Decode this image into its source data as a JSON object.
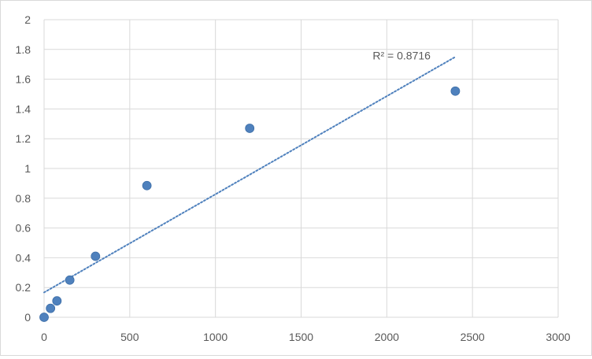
{
  "chart_data": {
    "type": "scatter",
    "title": "",
    "xlabel": "",
    "ylabel": "",
    "xlim": [
      0,
      3000
    ],
    "ylim": [
      0,
      2
    ],
    "x_ticks": [
      0,
      500,
      1000,
      1500,
      2000,
      2500,
      3000
    ],
    "y_ticks": [
      0,
      0.2,
      0.4,
      0.6,
      0.8,
      1,
      1.2,
      1.4,
      1.6,
      1.8,
      2
    ],
    "x_tick_labels": [
      "0",
      "500",
      "1000",
      "1500",
      "2000",
      "2500",
      "3000"
    ],
    "y_tick_labels": [
      "0",
      "0.2",
      "0.4",
      "0.6",
      "0.8",
      "1",
      "1.2",
      "1.4",
      "1.6",
      "1.8",
      "2"
    ],
    "grid": true,
    "series": [
      {
        "points": [
          {
            "x": 0,
            "y": 0.0
          },
          {
            "x": 37.5,
            "y": 0.06
          },
          {
            "x": 75,
            "y": 0.11
          },
          {
            "x": 150,
            "y": 0.25
          },
          {
            "x": 300,
            "y": 0.41
          },
          {
            "x": 600,
            "y": 0.885
          },
          {
            "x": 1200,
            "y": 1.27
          },
          {
            "x": 2400,
            "y": 1.52
          }
        ],
        "color": "#4f81bd"
      }
    ],
    "trendline": {
      "type": "linear",
      "x_range": [
        0,
        2400
      ],
      "y_start": 0.167,
      "y_end": 1.75,
      "color": "#4f81bd",
      "style": "dotted",
      "label": "R² = 0.8716"
    }
  }
}
